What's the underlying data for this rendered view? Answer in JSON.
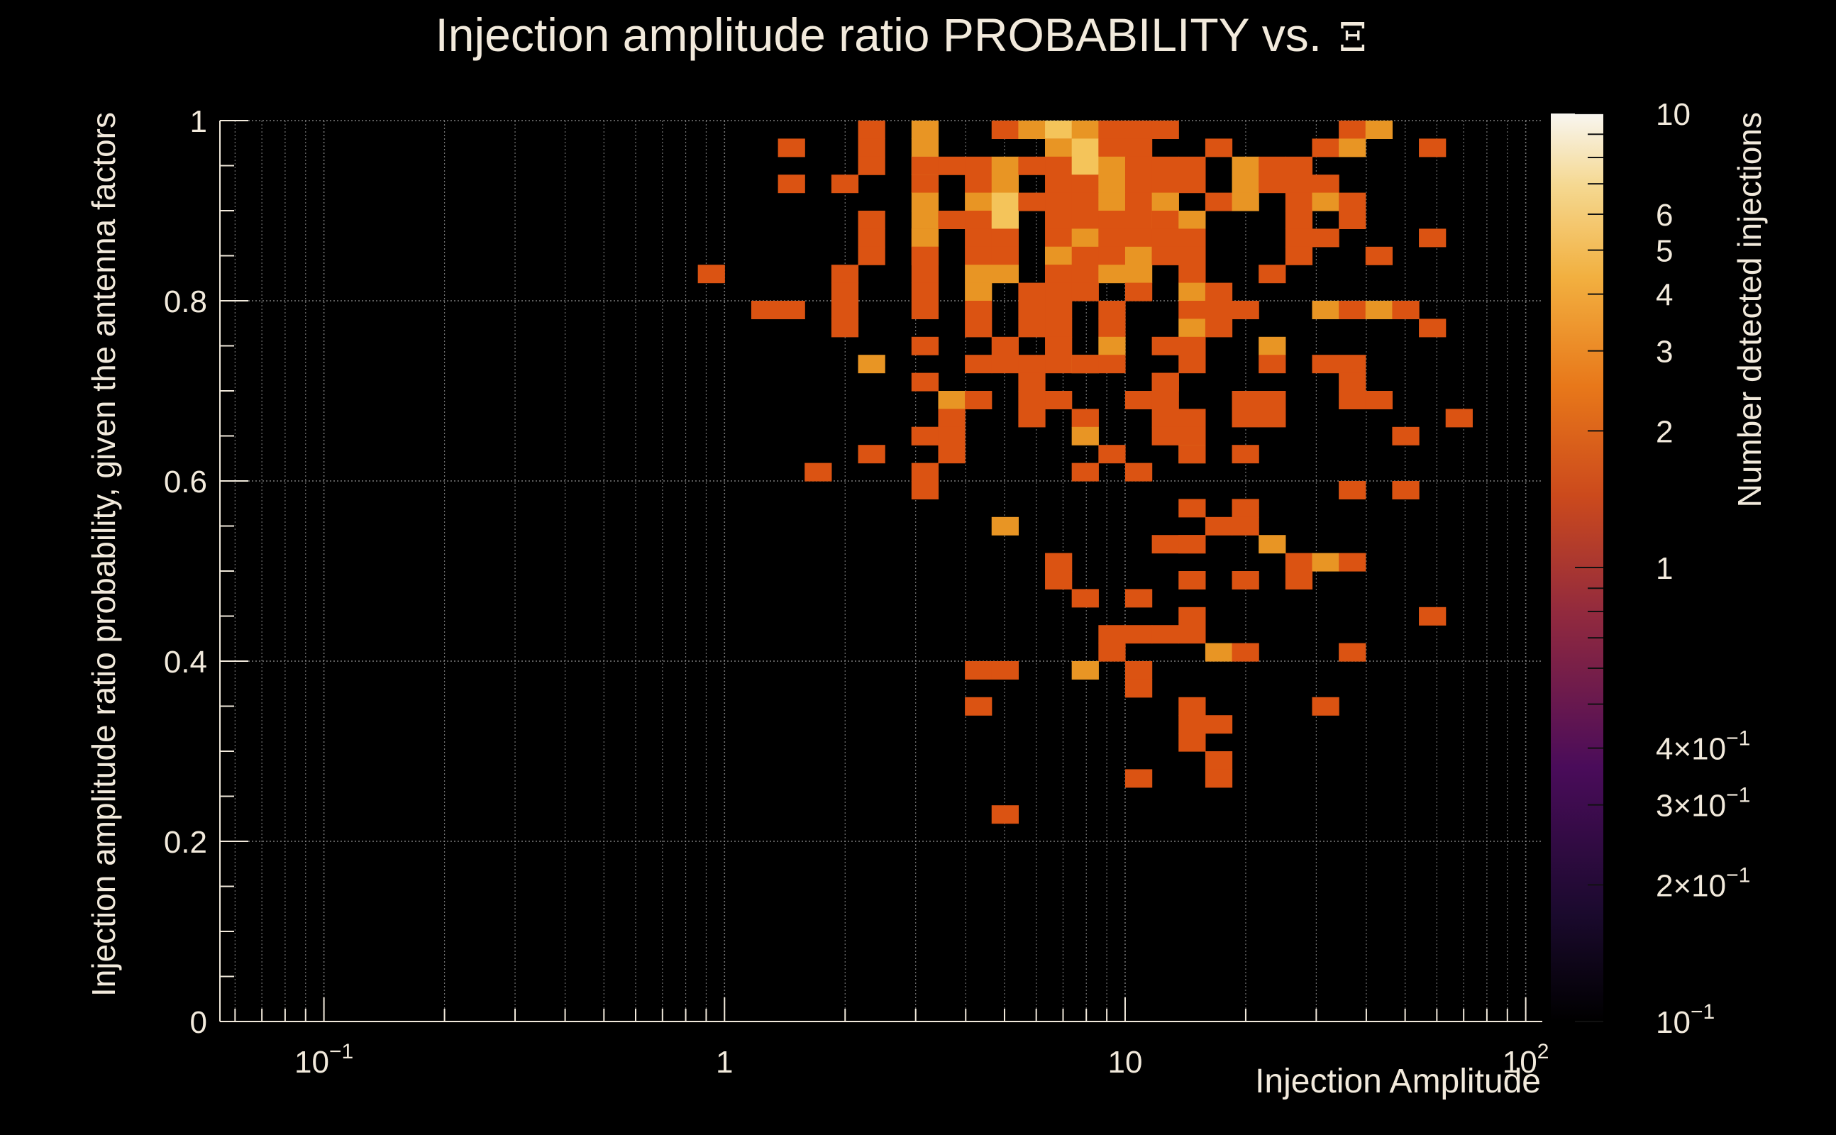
{
  "chart_data": {
    "type": "heatmap",
    "title": "Injection amplitude ratio PROBABILITY vs.",
    "title_symbol": "Ξ",
    "xlabel": "Injection Amplitude",
    "ylabel": "Injection amplitude ratio probability, given the antenna factors",
    "zlabel": "Number detected injections",
    "x_scale": "log",
    "xlim": [
      0.055,
      110
    ],
    "ylim": [
      0,
      1
    ],
    "z_scale": "log",
    "zlim": [
      0.1,
      10
    ],
    "x_tick_labels": [
      {
        "value": 0.1,
        "base": "10",
        "exp": "−1"
      },
      {
        "value": 1,
        "base": "1",
        "exp": ""
      },
      {
        "value": 10,
        "base": "10",
        "exp": ""
      },
      {
        "value": 100,
        "base": "10",
        "exp": "2"
      }
    ],
    "y_ticks": [
      {
        "value": 0,
        "label": "0"
      },
      {
        "value": 0.2,
        "label": "0.2"
      },
      {
        "value": 0.4,
        "label": "0.4"
      },
      {
        "value": 0.6,
        "label": "0.6"
      },
      {
        "value": 0.8,
        "label": "0.8"
      },
      {
        "value": 1,
        "label": "1"
      }
    ],
    "z_tick_labels": [
      {
        "value": 10,
        "base": "10",
        "exp": ""
      },
      {
        "value": 6,
        "base": "6",
        "exp": ""
      },
      {
        "value": 5,
        "base": "5",
        "exp": ""
      },
      {
        "value": 4,
        "base": "4",
        "exp": ""
      },
      {
        "value": 3,
        "base": "3",
        "exp": ""
      },
      {
        "value": 2,
        "base": "2",
        "exp": ""
      },
      {
        "value": 1,
        "base": "1",
        "exp": ""
      },
      {
        "value": 0.4,
        "base": "4×10",
        "exp": "−1"
      },
      {
        "value": 0.3,
        "base": "3×10",
        "exp": "−1"
      },
      {
        "value": 0.2,
        "base": "2×10",
        "exp": "−1"
      },
      {
        "value": 0.1,
        "base": "10",
        "exp": "−1"
      }
    ],
    "x_bins_per_decade": 15,
    "x_bins_origin": 0.0631,
    "y_bin_width": 0.02,
    "cells": [
      [
        2.5,
        0.99,
        1
      ],
      [
        3.2,
        0.99,
        2
      ],
      [
        4.8,
        0.99,
        1
      ],
      [
        6.0,
        0.99,
        2
      ],
      [
        7.1,
        0.99,
        3
      ],
      [
        8.2,
        0.99,
        2
      ],
      [
        9.3,
        0.99,
        1
      ],
      [
        10.7,
        0.99,
        1
      ],
      [
        12.5,
        0.99,
        1
      ],
      [
        37,
        0.99,
        1
      ],
      [
        43,
        0.99,
        2
      ],
      [
        1.55,
        0.97,
        1
      ],
      [
        2.5,
        0.97,
        1
      ],
      [
        3.2,
        0.97,
        2
      ],
      [
        6.4,
        0.97,
        1
      ],
      [
        7.1,
        0.97,
        2
      ],
      [
        8.2,
        0.97,
        3
      ],
      [
        9.3,
        0.97,
        1
      ],
      [
        10.7,
        0.97,
        1
      ],
      [
        17,
        0.97,
        1
      ],
      [
        31,
        0.97,
        1
      ],
      [
        37,
        0.97,
        2
      ],
      [
        57,
        0.97,
        1
      ],
      [
        2.5,
        0.95,
        1
      ],
      [
        3.0,
        0.95,
        3
      ],
      [
        3.4,
        0.95,
        1
      ],
      [
        3.9,
        0.95,
        1
      ],
      [
        4.5,
        0.95,
        1
      ],
      [
        5.2,
        0.95,
        2
      ],
      [
        6.0,
        0.95,
        1
      ],
      [
        7.1,
        0.95,
        1
      ],
      [
        8.2,
        0.95,
        3
      ],
      [
        8.9,
        0.95,
        2
      ],
      [
        10.7,
        0.95,
        1
      ],
      [
        12.9,
        0.95,
        1
      ],
      [
        15.4,
        0.95,
        1
      ],
      [
        20,
        0.95,
        2
      ],
      [
        23,
        0.95,
        1
      ],
      [
        26,
        0.95,
        1
      ],
      [
        1.55,
        0.93,
        1
      ],
      [
        2.1,
        0.93,
        1
      ],
      [
        3.0,
        0.93,
        2
      ],
      [
        3.4,
        0.93,
        1
      ],
      [
        4.5,
        0.93,
        1
      ],
      [
        5.2,
        0.93,
        2
      ],
      [
        6.4,
        0.93,
        1
      ],
      [
        8.2,
        0.93,
        1
      ],
      [
        8.9,
        0.93,
        2
      ],
      [
        10.7,
        0.93,
        1
      ],
      [
        12.5,
        0.93,
        1
      ],
      [
        14.4,
        0.93,
        1
      ],
      [
        20,
        0.93,
        2
      ],
      [
        22,
        0.93,
        1
      ],
      [
        26,
        0.93,
        1
      ],
      [
        30,
        0.93,
        1
      ],
      [
        3.0,
        0.91,
        2
      ],
      [
        4.5,
        0.91,
        2
      ],
      [
        5.2,
        0.91,
        3
      ],
      [
        6.0,
        0.91,
        1
      ],
      [
        6.9,
        0.91,
        1
      ],
      [
        8.2,
        0.91,
        1
      ],
      [
        9.6,
        0.91,
        2
      ],
      [
        10.7,
        0.91,
        1
      ],
      [
        11.8,
        0.91,
        1
      ],
      [
        13.5,
        0.91,
        2
      ],
      [
        17.4,
        0.91,
        1
      ],
      [
        20,
        0.91,
        2
      ],
      [
        26,
        0.91,
        1
      ],
      [
        31,
        0.91,
        2
      ],
      [
        37,
        0.91,
        1
      ],
      [
        2.5,
        0.89,
        1
      ],
      [
        3.0,
        0.89,
        2
      ],
      [
        3.9,
        0.89,
        1
      ],
      [
        4.5,
        0.89,
        1
      ],
      [
        5.2,
        0.89,
        3
      ],
      [
        6.4,
        0.89,
        1
      ],
      [
        7.7,
        0.89,
        1
      ],
      [
        8.9,
        0.89,
        1
      ],
      [
        10.1,
        0.89,
        1
      ],
      [
        11.8,
        0.89,
        2
      ],
      [
        13.5,
        0.89,
        1
      ],
      [
        15.8,
        0.89,
        2
      ],
      [
        26,
        0.89,
        1
      ],
      [
        37,
        0.89,
        1
      ],
      [
        2.5,
        0.87,
        1
      ],
      [
        3.0,
        0.87,
        1
      ],
      [
        3.4,
        0.87,
        2
      ],
      [
        4.5,
        0.87,
        1
      ],
      [
        5.2,
        0.87,
        1
      ],
      [
        6.8,
        0.87,
        1
      ],
      [
        7.7,
        0.87,
        2
      ],
      [
        8.9,
        0.87,
        1
      ],
      [
        10.7,
        0.87,
        1
      ],
      [
        12.0,
        0.87,
        1
      ],
      [
        13.4,
        0.87,
        1
      ],
      [
        15.8,
        0.87,
        1
      ],
      [
        26,
        0.87,
        1
      ],
      [
        33,
        0.87,
        1
      ],
      [
        57,
        0.87,
        1
      ],
      [
        2.3,
        0.85,
        1
      ],
      [
        3.0,
        0.85,
        1
      ],
      [
        3.4,
        0.85,
        1
      ],
      [
        4.5,
        0.85,
        1
      ],
      [
        5.2,
        0.85,
        1
      ],
      [
        6.4,
        0.85,
        2
      ],
      [
        7.3,
        0.85,
        2
      ],
      [
        8.0,
        0.85,
        1
      ],
      [
        9.0,
        0.85,
        1
      ],
      [
        10.1,
        0.85,
        2
      ],
      [
        11.8,
        0.85,
        1
      ],
      [
        13.0,
        0.85,
        1
      ],
      [
        15.0,
        0.85,
        1
      ],
      [
        26,
        0.85,
        1
      ],
      [
        45,
        0.85,
        1
      ],
      [
        1.0,
        0.83,
        1
      ],
      [
        2.1,
        0.83,
        1
      ],
      [
        3.4,
        0.83,
        1
      ],
      [
        4.5,
        0.83,
        2
      ],
      [
        5.2,
        0.83,
        2
      ],
      [
        6.4,
        0.83,
        1
      ],
      [
        7.3,
        0.83,
        1
      ],
      [
        8.5,
        0.83,
        1
      ],
      [
        9.6,
        0.83,
        2
      ],
      [
        10.4,
        0.83,
        2
      ],
      [
        14.4,
        0.83,
        1
      ],
      [
        24,
        0.83,
        1
      ],
      [
        2.1,
        0.81,
        1
      ],
      [
        3.4,
        0.81,
        1
      ],
      [
        4.5,
        0.81,
        2
      ],
      [
        6.0,
        0.81,
        1
      ],
      [
        7.1,
        0.81,
        1
      ],
      [
        8.2,
        0.81,
        1
      ],
      [
        10.1,
        0.81,
        1
      ],
      [
        15.8,
        0.81,
        2
      ],
      [
        17.4,
        0.81,
        1
      ],
      [
        1.2,
        0.79,
        1
      ],
      [
        1.4,
        0.79,
        1
      ],
      [
        2.1,
        0.79,
        1
      ],
      [
        3.0,
        0.79,
        1
      ],
      [
        4.0,
        0.79,
        1
      ],
      [
        6.0,
        0.79,
        1
      ],
      [
        7.1,
        0.79,
        1
      ],
      [
        9.6,
        0.79,
        1
      ],
      [
        14.4,
        0.79,
        1
      ],
      [
        17.4,
        0.79,
        1
      ],
      [
        20,
        0.79,
        1
      ],
      [
        31,
        0.79,
        2
      ],
      [
        35,
        0.79,
        1
      ],
      [
        42,
        0.79,
        2
      ],
      [
        49,
        0.79,
        1
      ],
      [
        2.1,
        0.77,
        1
      ],
      [
        4.5,
        0.77,
        1
      ],
      [
        6.0,
        0.77,
        1
      ],
      [
        7.1,
        0.77,
        1
      ],
      [
        9.6,
        0.77,
        1
      ],
      [
        14.4,
        0.77,
        2
      ],
      [
        17.4,
        0.77,
        1
      ],
      [
        57,
        0.77,
        1
      ],
      [
        3.0,
        0.75,
        1
      ],
      [
        5.2,
        0.75,
        1
      ],
      [
        6.4,
        0.75,
        1
      ],
      [
        9.6,
        0.75,
        2
      ],
      [
        12.9,
        0.75,
        1
      ],
      [
        15.0,
        0.75,
        1
      ],
      [
        24,
        0.75,
        2
      ],
      [
        2.5,
        0.73,
        2
      ],
      [
        4.5,
        0.73,
        1
      ],
      [
        5.2,
        0.73,
        1
      ],
      [
        6.0,
        0.73,
        1
      ],
      [
        7.1,
        0.73,
        1
      ],
      [
        7.6,
        0.73,
        2
      ],
      [
        8.2,
        0.73,
        1
      ],
      [
        9.6,
        0.73,
        1
      ],
      [
        14.4,
        0.73,
        1
      ],
      [
        24,
        0.73,
        1
      ],
      [
        31,
        0.73,
        1
      ],
      [
        37,
        0.73,
        1
      ],
      [
        3.4,
        0.71,
        1
      ],
      [
        6.0,
        0.71,
        1
      ],
      [
        11.8,
        0.71,
        1
      ],
      [
        13.2,
        0.71,
        1
      ],
      [
        37,
        0.71,
        1
      ],
      [
        3.9,
        0.69,
        2
      ],
      [
        4.5,
        0.69,
        1
      ],
      [
        6.0,
        0.69,
        1
      ],
      [
        6.9,
        0.69,
        1
      ],
      [
        10.1,
        0.69,
        1
      ],
      [
        13.2,
        0.69,
        1
      ],
      [
        20,
        0.69,
        1
      ],
      [
        23,
        0.69,
        1
      ],
      [
        37,
        0.69,
        1
      ],
      [
        42,
        0.69,
        1
      ],
      [
        3.9,
        0.67,
        1
      ],
      [
        6.0,
        0.67,
        1
      ],
      [
        7.7,
        0.67,
        1
      ],
      [
        11.8,
        0.67,
        1
      ],
      [
        15.0,
        0.67,
        1
      ],
      [
        20,
        0.67,
        1
      ],
      [
        24,
        0.67,
        1
      ],
      [
        67,
        0.67,
        1
      ],
      [
        3.0,
        0.65,
        1
      ],
      [
        3.4,
        0.65,
        1
      ],
      [
        3.9,
        0.65,
        1
      ],
      [
        7.7,
        0.65,
        2
      ],
      [
        12.9,
        0.65,
        1
      ],
      [
        15.4,
        0.65,
        1
      ],
      [
        50,
        0.65,
        1
      ],
      [
        2.3,
        0.63,
        1
      ],
      [
        3.9,
        0.63,
        1
      ],
      [
        9.0,
        0.63,
        1
      ],
      [
        14.4,
        0.63,
        2
      ],
      [
        15.8,
        0.63,
        1
      ],
      [
        20,
        0.63,
        1
      ],
      [
        1.6,
        0.61,
        1
      ],
      [
        3.4,
        0.61,
        1
      ],
      [
        7.7,
        0.61,
        1
      ],
      [
        10.1,
        0.61,
        1
      ],
      [
        3.4,
        0.59,
        1
      ],
      [
        37,
        0.59,
        1
      ],
      [
        50,
        0.59,
        1
      ],
      [
        14.4,
        0.57,
        1
      ],
      [
        20,
        0.57,
        1
      ],
      [
        5.2,
        0.55,
        2
      ],
      [
        17.4,
        0.55,
        1
      ],
      [
        20,
        0.55,
        1
      ],
      [
        12.0,
        0.53,
        1
      ],
      [
        14.4,
        0.53,
        1
      ],
      [
        15.8,
        0.53,
        1
      ],
      [
        24,
        0.53,
        2
      ],
      [
        6.4,
        0.51,
        1
      ],
      [
        26,
        0.51,
        1
      ],
      [
        31,
        0.51,
        2
      ],
      [
        35,
        0.51,
        1
      ],
      [
        6.4,
        0.49,
        1
      ],
      [
        15.8,
        0.49,
        1
      ],
      [
        20,
        0.49,
        1
      ],
      [
        26,
        0.49,
        1
      ],
      [
        7.7,
        0.47,
        1
      ],
      [
        10.1,
        0.47,
        1
      ],
      [
        15.8,
        0.45,
        1
      ],
      [
        57,
        0.45,
        1
      ],
      [
        9.0,
        0.43,
        1
      ],
      [
        10.7,
        0.43,
        1
      ],
      [
        13.5,
        0.43,
        1
      ],
      [
        15.0,
        0.43,
        1
      ],
      [
        9.0,
        0.41,
        1
      ],
      [
        17.4,
        0.41,
        2
      ],
      [
        20,
        0.41,
        1
      ],
      [
        37,
        0.41,
        1
      ],
      [
        4.0,
        0.39,
        1
      ],
      [
        5.4,
        0.39,
        1
      ],
      [
        7.7,
        0.39,
        2
      ],
      [
        10.1,
        0.39,
        1
      ],
      [
        11.4,
        0.37,
        1
      ],
      [
        4.0,
        0.35,
        1
      ],
      [
        15.8,
        0.35,
        1
      ],
      [
        31,
        0.35,
        1
      ],
      [
        15.8,
        0.33,
        1
      ],
      [
        17.4,
        0.33,
        1
      ],
      [
        14.4,
        0.31,
        1
      ],
      [
        17.4,
        0.29,
        1
      ],
      [
        10.1,
        0.27,
        1
      ],
      [
        17.4,
        0.27,
        1
      ],
      [
        4.8,
        0.23,
        1
      ]
    ]
  }
}
